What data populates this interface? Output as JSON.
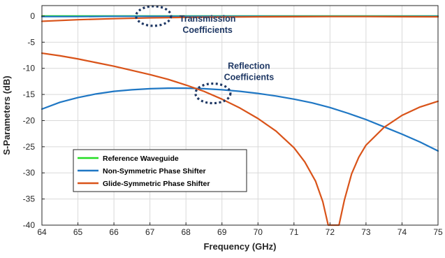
{
  "chart_data": {
    "type": "line",
    "xlabel": "Frequency (GHz)",
    "ylabel": "S-Parameters (dB)",
    "xlim": [
      64,
      75
    ],
    "ylim": [
      -40,
      2
    ],
    "xticks": [
      64,
      65,
      66,
      67,
      68,
      69,
      70,
      71,
      72,
      73,
      74,
      75
    ],
    "yticks": [
      0,
      -5,
      -10,
      -15,
      -20,
      -25,
      -30,
      -35,
      -40
    ],
    "grid": true,
    "legend_position": "bottom-left",
    "series": [
      {
        "name": "Reference Waveguide",
        "color": "#22dd22",
        "x": [
          64,
          65,
          66,
          67,
          68,
          69,
          70,
          71,
          72,
          73,
          74,
          75
        ],
        "y": [
          0,
          0,
          0,
          0,
          0,
          0,
          0,
          0,
          0,
          0,
          0,
          0
        ]
      },
      {
        "name": "Reference Waveguide",
        "color": "#22dd22",
        "x": [
          64,
          65,
          66,
          67,
          68,
          69,
          70,
          71,
          72,
          73,
          74,
          75
        ],
        "y": [
          0,
          0,
          0,
          0,
          0,
          0,
          0,
          0,
          0,
          0,
          0,
          0
        ]
      },
      {
        "name": "Non-Symmetric Phase Shifter",
        "color": "#1f77c4",
        "x": [
          64,
          65,
          66,
          67,
          68,
          69,
          70,
          71,
          72,
          73,
          74,
          75
        ],
        "y": [
          -0.1,
          -0.1,
          -0.05,
          -0.05,
          -0.05,
          -0.05,
          -0.05,
          -0.05,
          -0.05,
          -0.05,
          -0.05,
          -0.05
        ]
      },
      {
        "name": "Non-Symmetric Phase Shifter",
        "color": "#1f77c4",
        "x": [
          64,
          64.5,
          65,
          65.5,
          66,
          66.5,
          67,
          67.5,
          68,
          68.5,
          69,
          69.5,
          70,
          70.5,
          71,
          71.5,
          72,
          72.5,
          73,
          73.5,
          74,
          74.5,
          75
        ],
        "y": [
          -17.8,
          -16.5,
          -15.6,
          -14.9,
          -14.4,
          -14.1,
          -13.9,
          -13.8,
          -13.8,
          -13.9,
          -14.1,
          -14.4,
          -14.8,
          -15.3,
          -15.9,
          -16.6,
          -17.5,
          -18.6,
          -19.8,
          -21.2,
          -22.6,
          -24.1,
          -25.8
        ]
      },
      {
        "name": "Glide-Symmetric Phase Shifter",
        "color": "#d95319",
        "x": [
          64,
          65,
          66,
          67,
          68,
          69,
          70,
          71,
          72,
          73,
          74,
          75
        ],
        "y": [
          -1.0,
          -0.7,
          -0.5,
          -0.35,
          -0.25,
          -0.2,
          -0.15,
          -0.12,
          -0.1,
          -0.1,
          -0.12,
          -0.15
        ]
      },
      {
        "name": "Glide-Symmetric Phase Shifter",
        "color": "#d95319",
        "x": [
          64,
          64.5,
          65,
          65.5,
          66,
          66.5,
          67,
          67.5,
          68,
          68.5,
          69,
          69.5,
          70,
          70.5,
          71,
          71.3,
          71.6,
          71.8,
          71.95,
          72.25,
          72.4,
          72.6,
          72.8,
          73,
          73.5,
          74,
          74.5,
          75
        ],
        "y": [
          -7.1,
          -7.6,
          -8.2,
          -8.9,
          -9.6,
          -10.4,
          -11.2,
          -12.1,
          -13.2,
          -14.4,
          -15.9,
          -17.6,
          -19.6,
          -22.0,
          -25.2,
          -27.9,
          -31.6,
          -35.5,
          -40.0,
          -40.0,
          -35.2,
          -30.2,
          -27.0,
          -24.7,
          -21.3,
          -19.0,
          -17.4,
          -16.3
        ]
      }
    ],
    "legend": [
      {
        "label": "Reference Waveguide",
        "color": "#22dd22"
      },
      {
        "label": "Non-Symmetric Phase Shifter",
        "color": "#1f77c4"
      },
      {
        "label": "Glide-Symmetric Phase Shifter",
        "color": "#d95319"
      }
    ],
    "annotations": [
      {
        "lines": [
          "Transmission",
          "Coefficients"
        ],
        "circle_at": [
          67.1,
          0
        ],
        "text_at": [
          68.6,
          -1.1
        ]
      },
      {
        "lines": [
          "Reflection",
          "Coefficients"
        ],
        "circle_at": [
          68.75,
          -14.8
        ],
        "text_at": [
          69.75,
          -10.1
        ]
      }
    ]
  }
}
